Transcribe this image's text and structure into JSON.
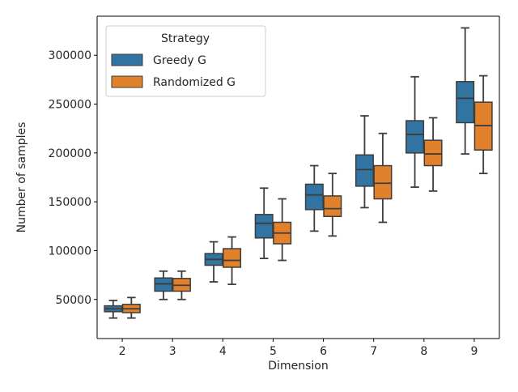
{
  "chart_data": {
    "type": "boxplot",
    "title": "",
    "xlabel": "Dimension",
    "ylabel": "Number of samples",
    "categories": [
      "2",
      "3",
      "4",
      "5",
      "6",
      "7",
      "8",
      "9"
    ],
    "ylim": [
      10000,
      340000
    ],
    "yticks": [
      50000,
      100000,
      150000,
      200000,
      250000,
      300000
    ],
    "ytick_labels": [
      "50000",
      "100000",
      "150000",
      "200000",
      "250000",
      "300000"
    ],
    "legend": {
      "title": "Strategy",
      "placement": "top-left"
    },
    "series": [
      {
        "name": "Greedy G",
        "color": "#3274a1",
        "boxes": [
          {
            "min": 31000,
            "q1": 37500,
            "median": 40500,
            "q3": 43500,
            "max": 49000
          },
          {
            "min": 50000,
            "q1": 58500,
            "median": 66000,
            "q3": 72000,
            "max": 79000
          },
          {
            "min": 68000,
            "q1": 85000,
            "median": 91000,
            "q3": 97000,
            "max": 109000
          },
          {
            "min": 92000,
            "q1": 113000,
            "median": 128000,
            "q3": 137000,
            "max": 164000
          },
          {
            "min": 120000,
            "q1": 142000,
            "median": 157000,
            "q3": 168000,
            "max": 187000
          },
          {
            "min": 144000,
            "q1": 166000,
            "median": 183000,
            "q3": 198000,
            "max": 238000
          },
          {
            "min": 165000,
            "q1": 200000,
            "median": 219000,
            "q3": 233000,
            "max": 278000
          },
          {
            "min": 199000,
            "q1": 231000,
            "median": 256000,
            "q3": 273000,
            "max": 328000
          }
        ]
      },
      {
        "name": "Randomized G",
        "color": "#e1812c",
        "boxes": [
          {
            "min": 31000,
            "q1": 36500,
            "median": 40500,
            "q3": 45000,
            "max": 52000
          },
          {
            "min": 50000,
            "q1": 58500,
            "median": 64500,
            "q3": 71500,
            "max": 79000
          },
          {
            "min": 65500,
            "q1": 83000,
            "median": 90000,
            "q3": 102000,
            "max": 114000
          },
          {
            "min": 90000,
            "q1": 107000,
            "median": 118000,
            "q3": 129000,
            "max": 153000
          },
          {
            "min": 115000,
            "q1": 135000,
            "median": 143000,
            "q3": 156000,
            "max": 179000
          },
          {
            "min": 129000,
            "q1": 153000,
            "median": 169000,
            "q3": 187000,
            "max": 220000
          },
          {
            "min": 161000,
            "q1": 187000,
            "median": 199000,
            "q3": 213000,
            "max": 236000
          },
          {
            "min": 179000,
            "q1": 203000,
            "median": 228000,
            "q3": 252000,
            "max": 279000
          }
        ]
      }
    ]
  }
}
